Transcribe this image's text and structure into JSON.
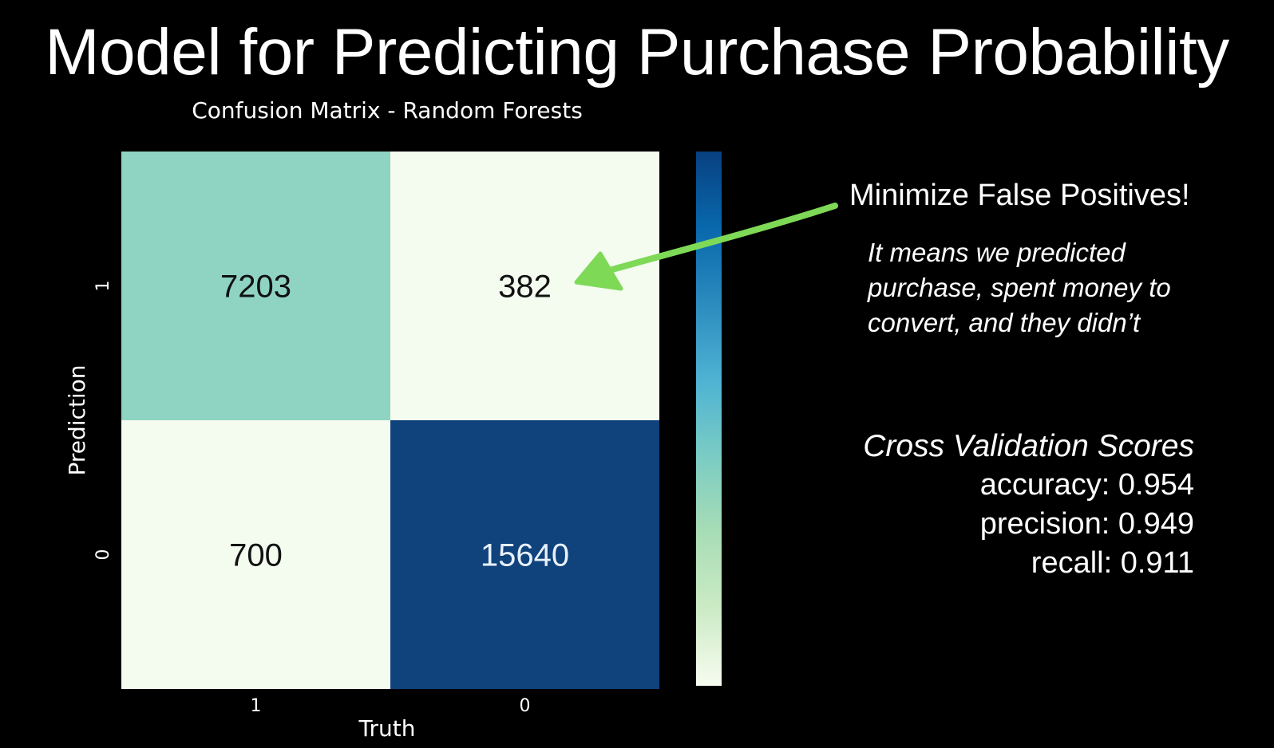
{
  "slide": {
    "title": "Model for Predicting Purchase Probability"
  },
  "annotation": {
    "heading": "Minimize False Positives!",
    "note_lines": [
      "It means we predicted",
      "purchase, spent money to",
      "convert, and they didn’t"
    ],
    "arrow_color": "#7ed957"
  },
  "scores": {
    "heading": "Cross Validation Scores",
    "items": [
      {
        "text": "accuracy: 0.954"
      },
      {
        "text": "precision: 0.949"
      },
      {
        "text": "recall: 0.911"
      }
    ]
  },
  "chart_data": {
    "type": "heatmap",
    "title": "Confusion Matrix - Random Forests",
    "xlabel": "Truth",
    "ylabel": "Prediction",
    "x_tick_labels": [
      "1",
      "0"
    ],
    "y_tick_labels": [
      "1",
      "0"
    ],
    "cells": [
      [
        7203,
        382
      ],
      [
        700,
        15640
      ]
    ],
    "value_range": [
      0,
      16000
    ],
    "colormap": "GnBu",
    "colormap_stops": [
      "#f7fcf0",
      "#ccebc5",
      "#a8ddb5",
      "#7bccc4",
      "#4eb3d3",
      "#2b8cbe",
      "#0868ac",
      "#084081"
    ],
    "cell_colors": [
      [
        "#8fd3c3",
        "#f4fbef"
      ],
      [
        "#f4fbef",
        "#10427c"
      ]
    ],
    "colorbar": true,
    "grid": false
  }
}
